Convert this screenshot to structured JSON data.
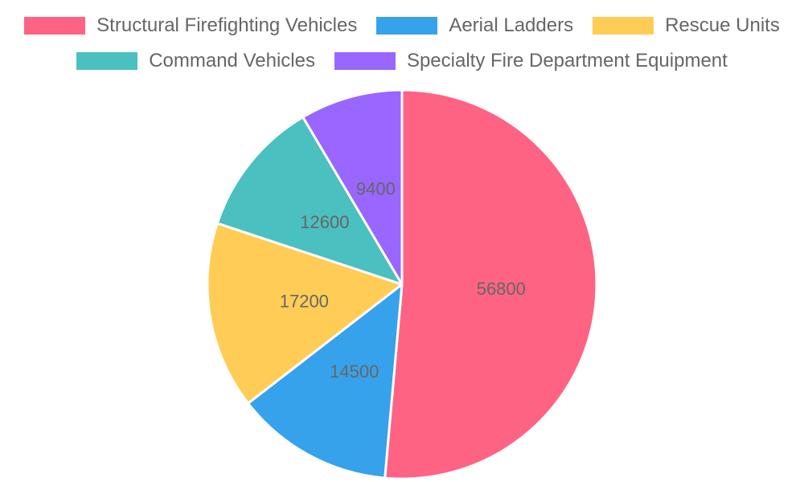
{
  "chart_data": {
    "type": "pie",
    "categories": [
      "Structural Firefighting Vehicles",
      "Aerial Ladders",
      "Rescue Units",
      "Command Vehicles",
      "Specialty Fire Department Equipment"
    ],
    "values": [
      56800,
      14500,
      17200,
      12600,
      9400
    ],
    "colors": [
      "#ff6384",
      "#36a2eb",
      "#ffcd56",
      "#4bc0c0",
      "#9966ff"
    ],
    "legend_position": "top"
  }
}
